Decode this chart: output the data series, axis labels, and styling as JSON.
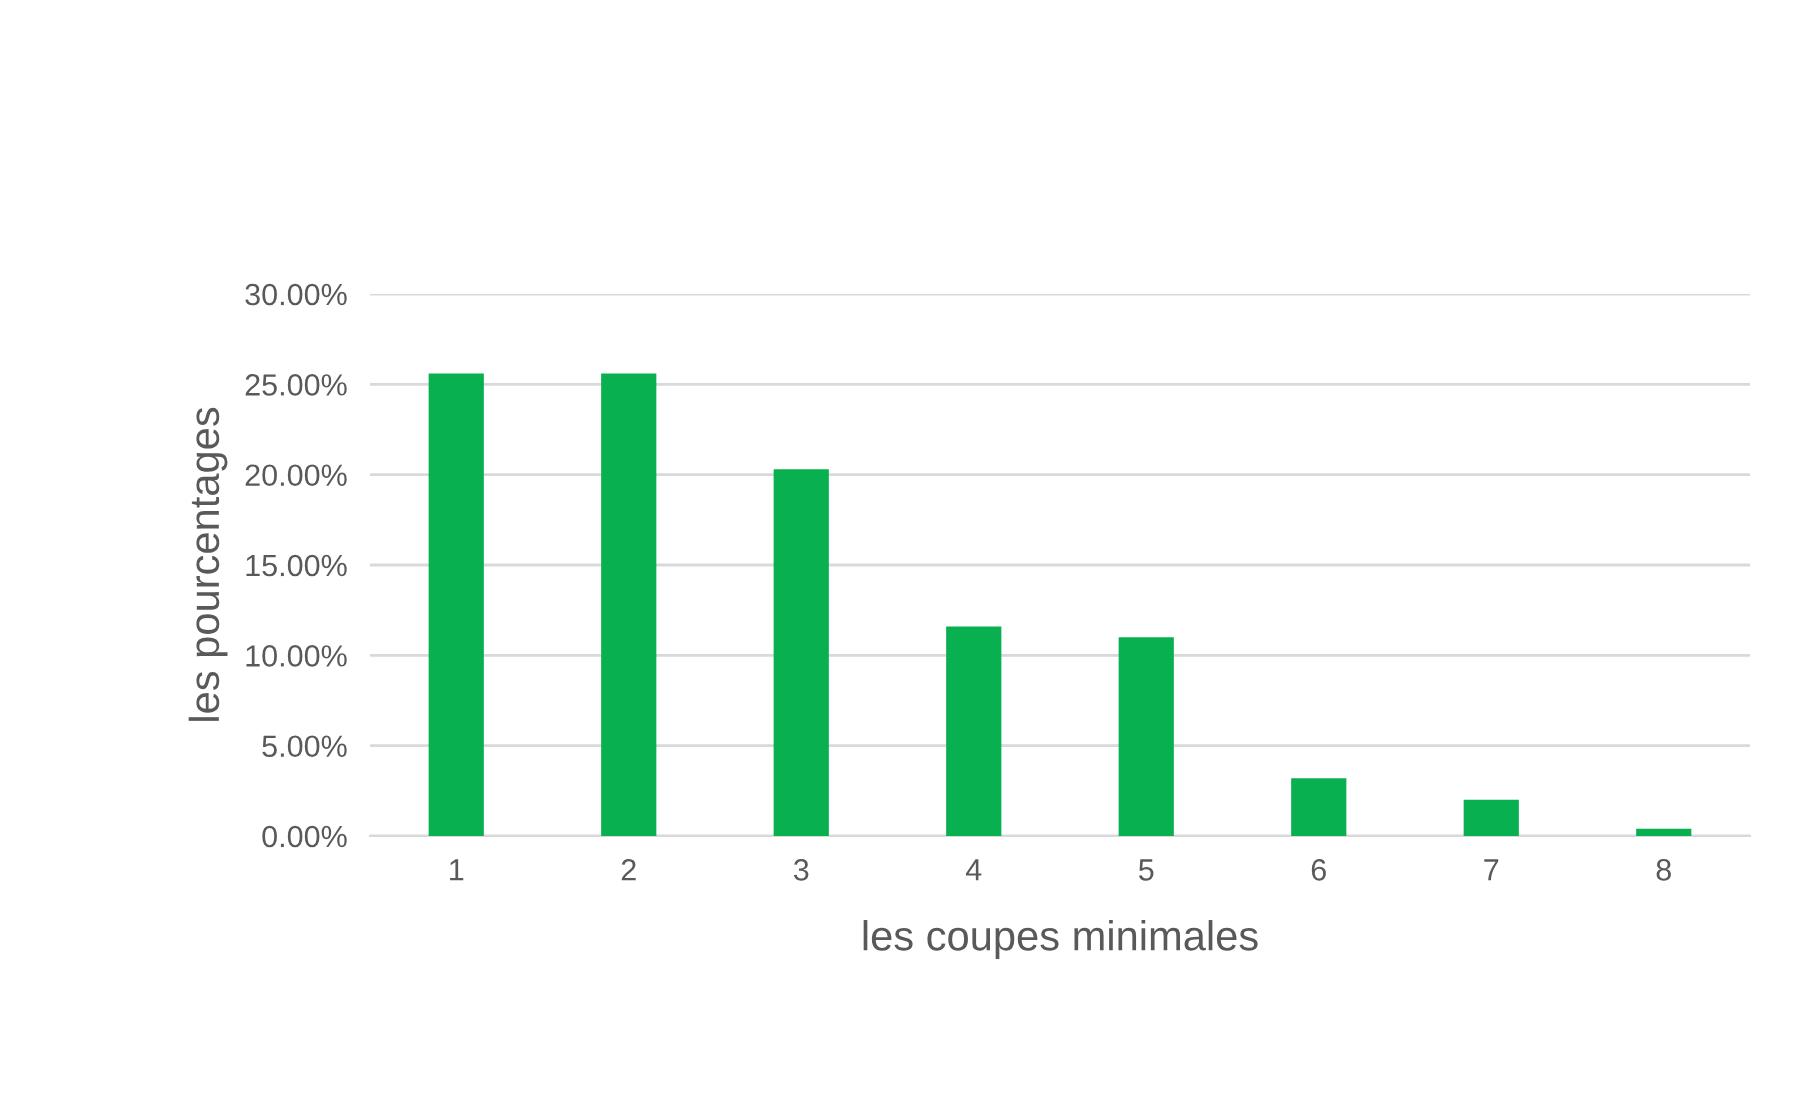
{
  "chart_data": {
    "type": "bar",
    "xlabel": "les coupes minimales",
    "ylabel": "les pourcentages",
    "categories": [
      "1",
      "2",
      "3",
      "4",
      "5",
      "6",
      "7",
      "8"
    ],
    "values": [
      25.6,
      25.6,
      20.3,
      11.6,
      11.0,
      3.2,
      2.0,
      0.4
    ],
    "color": "#08b050",
    "ylim": [
      0,
      30
    ],
    "yticks": [
      {
        "value": 0,
        "label": "0.00%"
      },
      {
        "value": 5,
        "label": "5.00%"
      },
      {
        "value": 10,
        "label": "10.00%"
      },
      {
        "value": 15,
        "label": "15.00%"
      },
      {
        "value": 20,
        "label": "20.00%"
      },
      {
        "value": 25,
        "label": "25.00%"
      },
      {
        "value": 30,
        "label": "30.00%"
      }
    ],
    "grid": "y"
  }
}
